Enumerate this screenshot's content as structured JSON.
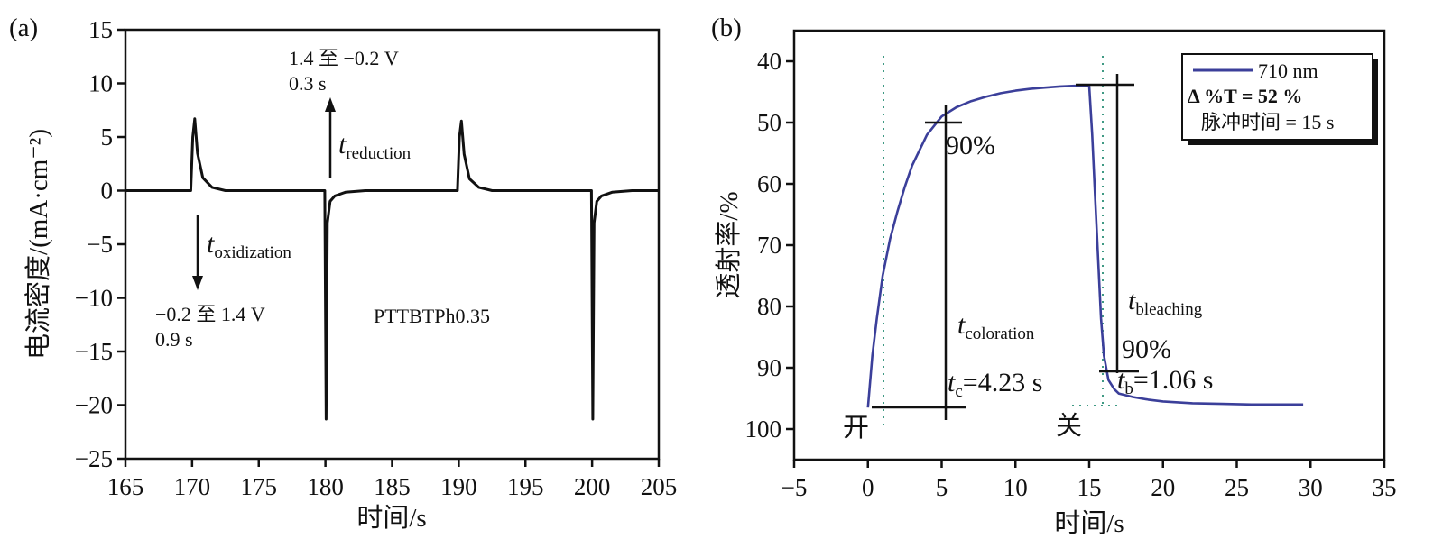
{
  "chart_data": [
    {
      "type": "line",
      "panel_label": "(a)",
      "xlabel": "时间/s",
      "ylabel": "电流密度/(mA·cm⁻²)",
      "xlim": [
        165,
        205
      ],
      "ylim": [
        -25,
        15
      ],
      "x_ticks": [
        "165",
        "170",
        "175",
        "180",
        "185",
        "190",
        "195",
        "200",
        "205"
      ],
      "y_ticks": [
        "15",
        "10",
        "5",
        "0",
        "−5",
        "−10",
        "−15",
        "−20",
        "−25"
      ],
      "series": [
        {
          "x": [
            165,
            169.9,
            170.05,
            170.2,
            170.4,
            170.8,
            171.5,
            172.5,
            179.95,
            180.05,
            180.15,
            180.35,
            180.7,
            181.5,
            183,
            189.9,
            190.05,
            190.2,
            190.4,
            190.8,
            191.5,
            192.5,
            199.95,
            200.05,
            200.15,
            200.35,
            200.7,
            201.5,
            203,
            205
          ],
          "y": [
            0,
            0,
            5,
            6.7,
            3.5,
            1.2,
            0.3,
            0,
            0,
            -21.3,
            -3,
            -1,
            -0.5,
            -0.15,
            0,
            0,
            5,
            6.5,
            3.4,
            1.1,
            0.3,
            0,
            0,
            -21.3,
            -3,
            -1,
            -0.5,
            -0.15,
            0,
            0
          ]
        }
      ],
      "annotations": {
        "reduction": {
          "line1": "1.4 至 −0.2 V",
          "line2": "0.3 s",
          "t": "t",
          "t_sub": "reduction"
        },
        "oxidization": {
          "line1": "−0.2 至 1.4 V",
          "line2": "0.9 s",
          "t": "t",
          "t_sub": "oxidization"
        },
        "sample": "PTTBTPh0.35"
      },
      "colors": {
        "line": "#111111"
      }
    },
    {
      "type": "line",
      "panel_label": "(b)",
      "xlabel": "时间/s",
      "ylabel": "透射率/%",
      "xlim": [
        -5,
        35
      ],
      "ylim": [
        35,
        105
      ],
      "y_inverted": true,
      "x_ticks": [
        "−5",
        "0",
        "5",
        "10",
        "15",
        "20",
        "25",
        "30",
        "35"
      ],
      "y_ticks": [
        "40",
        "50",
        "60",
        "70",
        "80",
        "90",
        "100"
      ],
      "series": [
        {
          "name": "710 nm",
          "x": [
            0,
            0.3,
            0.6,
            1,
            1.5,
            2,
            2.5,
            3,
            3.5,
            4,
            5,
            6,
            7,
            8,
            9,
            10,
            11,
            12,
            13,
            14,
            15,
            15.2,
            15.4,
            15.6,
            15.8,
            16,
            16.3,
            16.7,
            17,
            18,
            19,
            20,
            22,
            24,
            26,
            28,
            29.5
          ],
          "y": [
            96.5,
            88,
            82,
            75,
            69,
            64.5,
            60.5,
            57,
            54.5,
            52,
            49,
            47.5,
            46.5,
            45.8,
            45.2,
            44.8,
            44.5,
            44.3,
            44.1,
            44,
            44,
            52,
            62,
            72,
            82,
            88,
            92,
            93.5,
            94.2,
            94.8,
            95.2,
            95.5,
            95.8,
            95.9,
            96,
            96,
            96
          ]
        }
      ],
      "legend": {
        "placement": "top-right",
        "series_label": "710 nm",
        "line2": "Δ %T = 52 %",
        "line3": "脉冲时间 = 15 s"
      },
      "annotations": {
        "coloration_pct": "90%",
        "bleaching_pct": "90%",
        "t": "t",
        "coloration_sub": "coloration",
        "bleaching_sub": "bleaching",
        "tc_sub": "c",
        "tc_value": "=4.23 s",
        "tb_sub": "b",
        "tb_value": "=1.06 s",
        "on_label": "开",
        "off_label": "关"
      },
      "colors": {
        "line": "#3b3f9a",
        "dotted": "#3f9a84",
        "frame": "#111111"
      }
    }
  ]
}
